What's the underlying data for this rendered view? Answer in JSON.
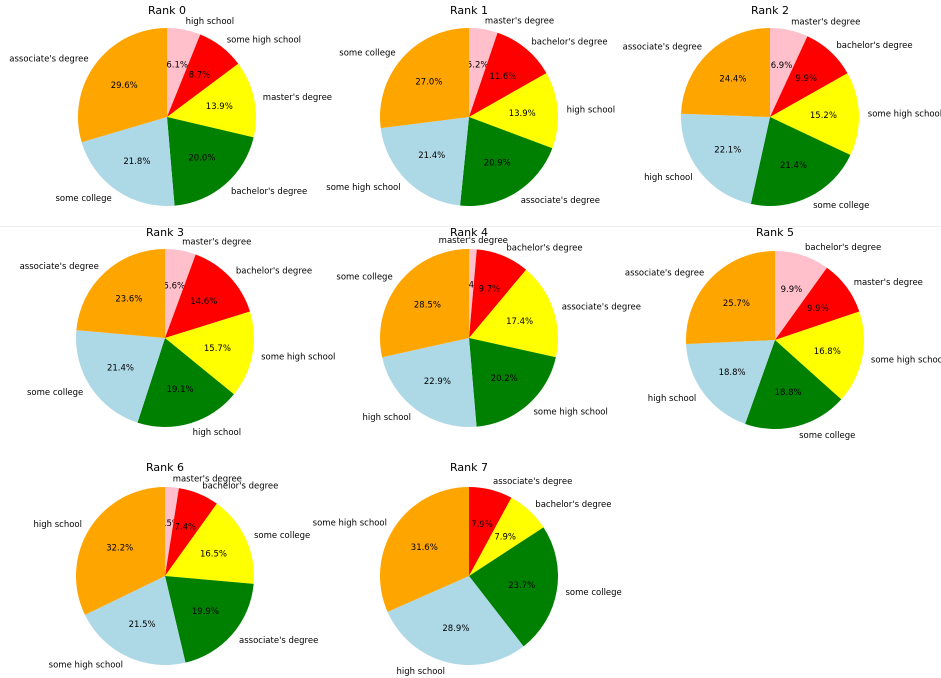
{
  "colors": [
    "#ffc0cb",
    "#ff0000",
    "#ffff00",
    "#008000",
    "#add8e6",
    "#ffa500"
  ],
  "chart_data": [
    {
      "type": "pie",
      "title": "Rank 0",
      "labels": [
        "high school",
        "some high school",
        "master's degree",
        "bachelor's degree",
        "some college",
        "associate's degree"
      ],
      "values": [
        6.1,
        8.7,
        13.9,
        20.0,
        21.8,
        29.6
      ],
      "value_labels": [
        "6.1%",
        "8.7%",
        "13.9%",
        "20.0%",
        "21.8%",
        "29.6%"
      ],
      "start_angle": 90,
      "direction": "clockwise"
    },
    {
      "type": "pie",
      "title": "Rank 1",
      "labels": [
        "master's degree",
        "bachelor's degree",
        "high school",
        "associate's degree",
        "some high school",
        "some college"
      ],
      "values": [
        5.2,
        11.6,
        13.9,
        20.9,
        21.4,
        27.0
      ],
      "value_labels": [
        "5.2%",
        "11.6%",
        "13.9%",
        "20.9%",
        "21.4%",
        "27.0%"
      ],
      "start_angle": 90,
      "direction": "clockwise"
    },
    {
      "type": "pie",
      "title": "Rank 2",
      "labels": [
        "master's degree",
        "bachelor's degree",
        "some high school",
        "some college",
        "high school",
        "associate's degree"
      ],
      "values": [
        6.9,
        9.9,
        15.2,
        21.4,
        22.1,
        24.4
      ],
      "value_labels": [
        "6.9%",
        "9.9%",
        "15.2%",
        "21.4%",
        "22.1%",
        "24.4%"
      ],
      "start_angle": 90,
      "direction": "clockwise"
    },
    {
      "type": "pie",
      "title": "Rank 3",
      "labels": [
        "master's degree",
        "bachelor's degree",
        "some high school",
        "high school",
        "some college",
        "associate's degree"
      ],
      "values": [
        5.6,
        14.6,
        15.7,
        19.1,
        21.4,
        23.6
      ],
      "value_labels": [
        "5.6%",
        "14.6%",
        "15.7%",
        "19.1%",
        "21.4%",
        "23.6%"
      ],
      "start_angle": 90,
      "direction": "clockwise"
    },
    {
      "type": "pie",
      "title": "Rank 4",
      "labels": [
        "master's degree",
        "bachelor's degree",
        "associate's degree",
        "some high school",
        "high school",
        "some college"
      ],
      "values": [
        1.4,
        9.7,
        17.4,
        20.2,
        22.9,
        28.5
      ],
      "value_labels": [
        "1.4%",
        "9.7%",
        "17.4%",
        "20.2%",
        "22.9%",
        "28.5%"
      ],
      "start_angle": 90,
      "direction": "clockwise"
    },
    {
      "type": "pie",
      "title": "Rank 5",
      "labels": [
        "bachelor's degree",
        "master's degree",
        "some high school",
        "some college",
        "high school",
        "associate's degree"
      ],
      "values": [
        9.9,
        9.9,
        16.8,
        18.8,
        18.8,
        25.7
      ],
      "value_labels": [
        "9.9%",
        "9.9%",
        "16.8%",
        "18.8%",
        "18.8%",
        "25.7%"
      ],
      "start_angle": 90,
      "direction": "clockwise"
    },
    {
      "type": "pie",
      "title": "Rank 6",
      "labels": [
        "master's degree",
        "bachelor's degree",
        "some college",
        "associate's degree",
        "some high school",
        "high school"
      ],
      "values": [
        2.5,
        7.4,
        16.5,
        19.9,
        21.5,
        32.2
      ],
      "value_labels": [
        "2.5%",
        "7.4%",
        "16.5%",
        "19.9%",
        "21.5%",
        "32.2%"
      ],
      "start_angle": 90,
      "direction": "clockwise"
    },
    {
      "type": "pie",
      "title": "Rank 7",
      "labels": [
        "associate's degree",
        "bachelor's degree",
        "some college",
        "high school",
        "some high school"
      ],
      "values": [
        7.9,
        7.9,
        23.7,
        28.9,
        31.6
      ],
      "value_labels": [
        "7.9%",
        "7.9%",
        "23.7%",
        "28.9%",
        "31.6%"
      ],
      "start_angle": 90,
      "direction": "clockwise",
      "color_offset": 1
    }
  ]
}
